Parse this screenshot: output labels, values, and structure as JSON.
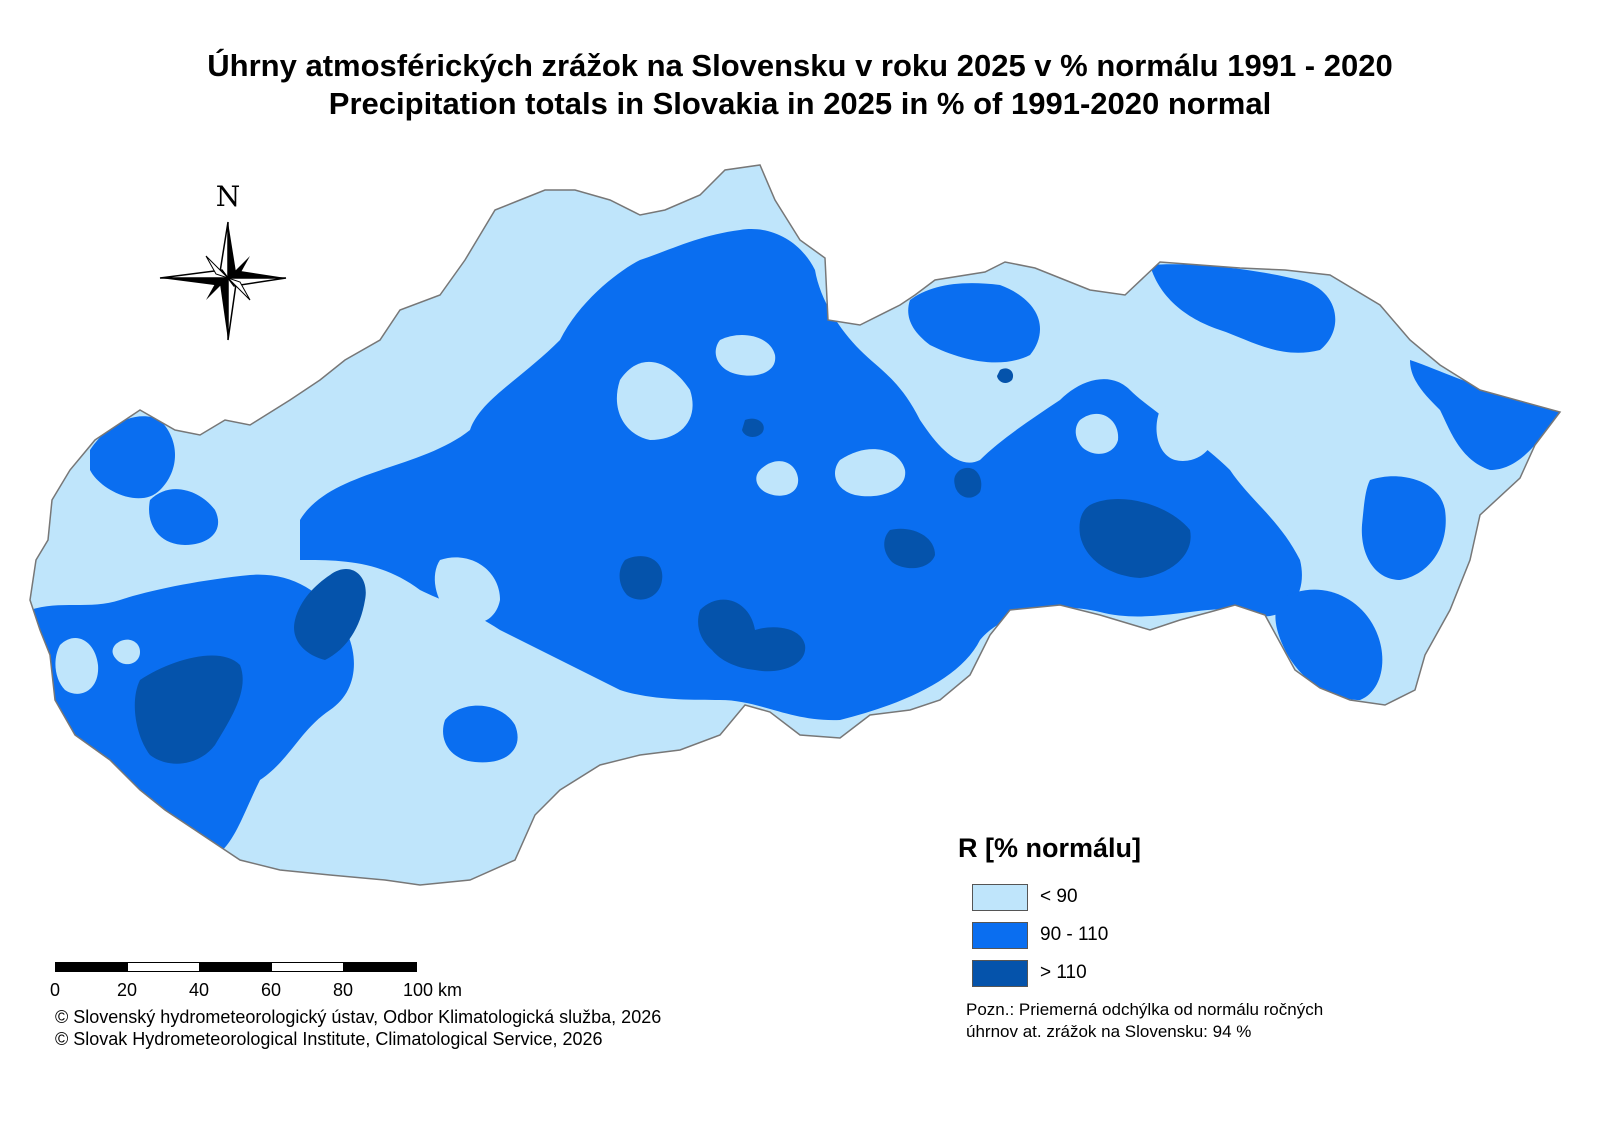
{
  "title_sk": "Úhrny atmosférických zrážok na Slovensku v roku 2025 v % normálu 1991 - 2020",
  "title_en": "Precipitation totals in Slovakia in 2025 in % of 1991-2020 normal",
  "north_label": "N",
  "legend": {
    "title": "R [% normálu]",
    "items": [
      {
        "label": "< 90",
        "color": "#bfe5fb"
      },
      {
        "label": "90 - 110",
        "color": "#0a6ef0"
      },
      {
        "label": "> 110",
        "color": "#0553ab"
      }
    ]
  },
  "scale": {
    "ticks": [
      "0",
      "20",
      "40",
      "60",
      "80",
      "100 km"
    ]
  },
  "copyright": {
    "sk": "© Slovenský hydrometeorologický ústav, Odbor Klimatologická služba, 2026",
    "en": "© Slovak Hydrometeorological Institute, Climatological Service, 2026"
  },
  "note": {
    "line1": "Pozn.: Priemerná odchýlka od normálu ročných",
    "line2": "úhrnov at. zrážok na Slovensku: 94 %"
  },
  "colors": {
    "below_normal": "#bfe5fb",
    "normal": "#0a6ef0",
    "above_normal": "#0553ab",
    "border": "#777777"
  }
}
